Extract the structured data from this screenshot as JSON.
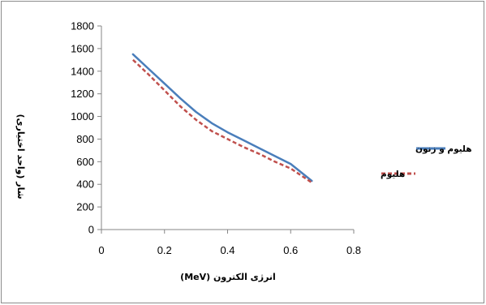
{
  "chart_data": {
    "type": "line",
    "xlabel": "انرژی الکترون (MeV)",
    "ylabel": "شار (واحد اختیاری)",
    "xlim": [
      0,
      0.8
    ],
    "ylim": [
      0,
      1800
    ],
    "x_ticks": [
      "0",
      "0.2",
      "0.4",
      "0.6",
      "0.8"
    ],
    "y_ticks": [
      "0",
      "200",
      "400",
      "600",
      "800",
      "1000",
      "1200",
      "1400",
      "1600",
      "1800"
    ],
    "grid": false,
    "legend_position": "right",
    "series": [
      {
        "name": "هلیوم و زنون",
        "color": "#4a7ebb",
        "style": "solid",
        "x": [
          0.1,
          0.15,
          0.2,
          0.25,
          0.3,
          0.35,
          0.4,
          0.45,
          0.5,
          0.55,
          0.6,
          0.667
        ],
        "y": [
          1550,
          1420,
          1290,
          1160,
          1040,
          940,
          860,
          790,
          720,
          650,
          580,
          430
        ]
      },
      {
        "name": "هلیوم",
        "color": "#c0504d",
        "style": "dashed",
        "x": [
          0.1,
          0.15,
          0.2,
          0.25,
          0.3,
          0.35,
          0.4,
          0.45,
          0.5,
          0.55,
          0.6,
          0.667
        ],
        "y": [
          1500,
          1370,
          1230,
          1090,
          970,
          870,
          800,
          730,
          670,
          600,
          540,
          415
        ]
      }
    ]
  }
}
